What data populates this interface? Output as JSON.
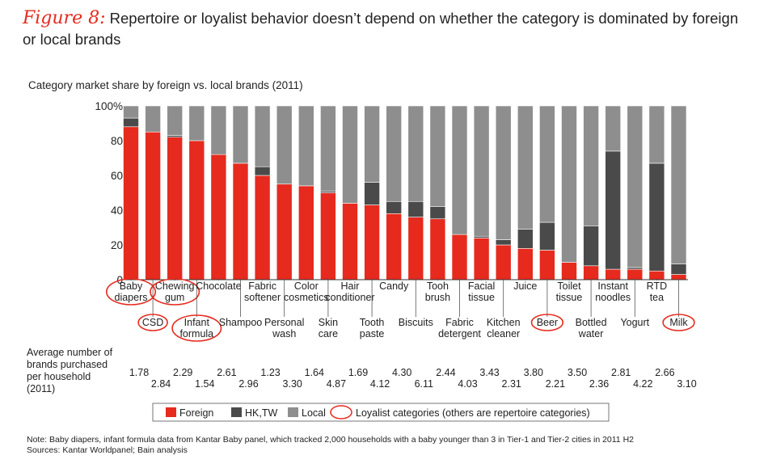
{
  "title": {
    "figure_label": "Figure 8:",
    "text": "Repertoire or loyalist behavior doesn’t depend on whether the category is dominated by foreign or local brands"
  },
  "avg_label": "Average number of brands purchased per household (2011)",
  "note": {
    "line1": "Note: Baby diapers, infant formula data from Kantar Baby panel, which tracked 2,000 households with a baby younger than 3 in Tier-1 and Tier-2 cities in 2011 H2",
    "line2": "Sources: Kantar Worldpanel; Bain analysis"
  },
  "colors": {
    "foreign": "#e62a1e",
    "hktw": "#4a4a4a",
    "local": "#8e8e8e",
    "circle": "#e62a1e"
  },
  "chart_data": {
    "type": "bar",
    "stacked": true,
    "title": "Category market share by foreign vs. local brands (2011)",
    "ylim": [
      0,
      100
    ],
    "yticks": [
      "0",
      "20",
      "40",
      "60",
      "80",
      "100%"
    ],
    "categories": [
      {
        "label": [
          "Baby",
          "diapers"
        ],
        "row": 1,
        "loyalist": true
      },
      {
        "label": [
          "CSD"
        ],
        "row": 2,
        "loyalist": true
      },
      {
        "label": [
          "Chewing",
          "gum"
        ],
        "row": 1,
        "loyalist": true
      },
      {
        "label": [
          "Infant",
          "formula"
        ],
        "row": 2,
        "loyalist": true
      },
      {
        "label": [
          "Chocolate"
        ],
        "row": 1,
        "loyalist": false
      },
      {
        "label": [
          "Shampoo"
        ],
        "row": 2,
        "loyalist": false
      },
      {
        "label": [
          "Fabric",
          "softener"
        ],
        "row": 1,
        "loyalist": false
      },
      {
        "label": [
          "Personal",
          "wash"
        ],
        "row": 2,
        "loyalist": false
      },
      {
        "label": [
          "Color",
          "cosmetics"
        ],
        "row": 1,
        "loyalist": false
      },
      {
        "label": [
          "Skin",
          "care"
        ],
        "row": 2,
        "loyalist": false
      },
      {
        "label": [
          "Hair",
          "conditioner"
        ],
        "row": 1,
        "loyalist": false
      },
      {
        "label": [
          "Tooth",
          "paste"
        ],
        "row": 2,
        "loyalist": false
      },
      {
        "label": [
          "Candy"
        ],
        "row": 1,
        "loyalist": false
      },
      {
        "label": [
          "Biscuits"
        ],
        "row": 2,
        "loyalist": false
      },
      {
        "label": [
          "Tooh",
          "brush"
        ],
        "row": 1,
        "loyalist": false
      },
      {
        "label": [
          "Fabric",
          "detergent"
        ],
        "row": 2,
        "loyalist": false
      },
      {
        "label": [
          "Facial",
          "tissue"
        ],
        "row": 1,
        "loyalist": false
      },
      {
        "label": [
          "Kitchen",
          "cleaner"
        ],
        "row": 2,
        "loyalist": false
      },
      {
        "label": [
          "Juice"
        ],
        "row": 1,
        "loyalist": false
      },
      {
        "label": [
          "Beer"
        ],
        "row": 2,
        "loyalist": true
      },
      {
        "label": [
          "Toilet",
          "tissue"
        ],
        "row": 1,
        "loyalist": false
      },
      {
        "label": [
          "Bottled",
          "water"
        ],
        "row": 2,
        "loyalist": false
      },
      {
        "label": [
          "Instant",
          "noodles"
        ],
        "row": 1,
        "loyalist": false
      },
      {
        "label": [
          "Yogurt"
        ],
        "row": 2,
        "loyalist": false
      },
      {
        "label": [
          "RTD",
          "tea"
        ],
        "row": 1,
        "loyalist": false
      },
      {
        "label": [
          "Milk"
        ],
        "row": 2,
        "loyalist": true
      }
    ],
    "series": [
      {
        "name": "Foreign",
        "values": [
          88,
          85,
          82,
          80,
          72,
          67,
          60,
          55,
          54,
          50,
          44,
          43,
          38,
          36,
          35,
          26,
          24,
          20,
          18,
          17,
          10,
          8,
          6,
          6,
          5,
          3
        ]
      },
      {
        "name": "HK,TW",
        "values": [
          5,
          0,
          1,
          0,
          0,
          0,
          5,
          0,
          0,
          1,
          0,
          13,
          7,
          9,
          7,
          0,
          1,
          3,
          11,
          16,
          0,
          23,
          68,
          1,
          62,
          6
        ]
      },
      {
        "name": "Local",
        "values": [
          7,
          15,
          17,
          20,
          28,
          33,
          35,
          45,
          46,
          49,
          56,
          44,
          55,
          55,
          58,
          74,
          75,
          77,
          71,
          67,
          90,
          69,
          26,
          93,
          33,
          91
        ]
      }
    ],
    "avg_brands": [
      "1.78",
      "2.84",
      "2.29",
      "1.54",
      "2.61",
      "2.96",
      "1.23",
      "3.30",
      "1.64",
      "4.87",
      "1.69",
      "4.12",
      "4.30",
      "6.11",
      "2.44",
      "4.03",
      "3.43",
      "2.31",
      "3.80",
      "2.21",
      "3.50",
      "2.36",
      "2.81",
      "4.22",
      "2.66",
      "3.10"
    ],
    "legend": [
      "Foreign",
      "HK,TW",
      "Local",
      "Loyalist categories (others are repertoire categories)"
    ]
  }
}
